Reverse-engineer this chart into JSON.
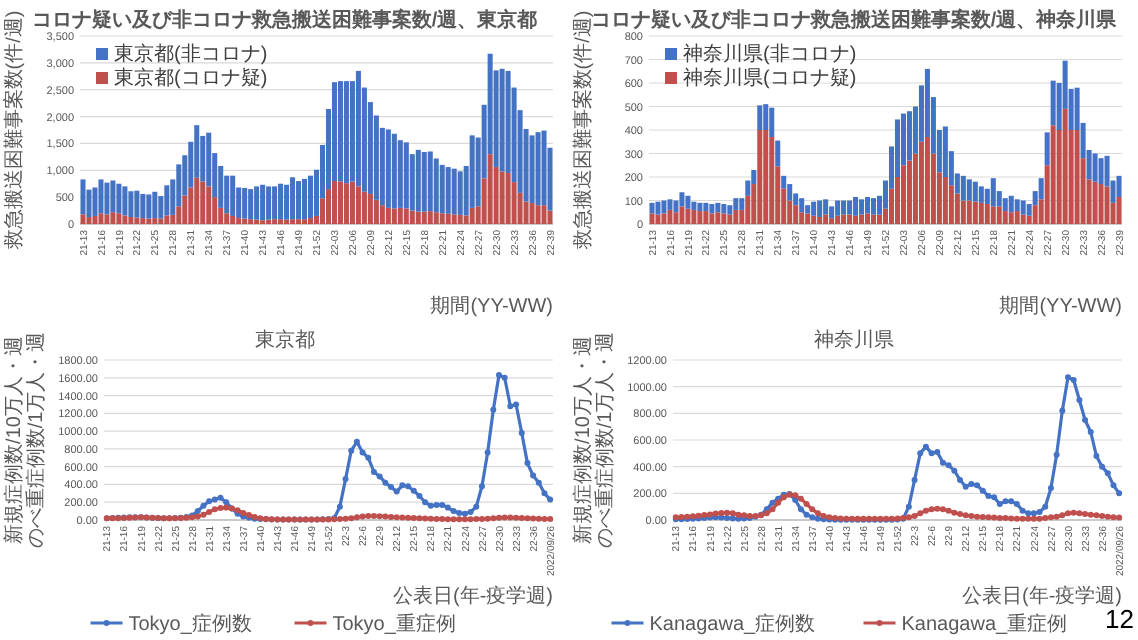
{
  "chart_data": [
    {
      "type": "bar",
      "stacked": true,
      "title": "コロナ疑い及び非コロナ救急搬送困難事案数/週、東京都",
      "xlabel": "期間(YY-WW)",
      "ylabel": "救急搬送困難事案数(件/週)",
      "legend": "top left",
      "grid": "y",
      "categories": [
        "21-13",
        null,
        null,
        "21-16",
        null,
        null,
        "21-19",
        null,
        null,
        "21-22",
        null,
        null,
        "21-25",
        null,
        null,
        "21-28",
        null,
        null,
        "21-31",
        null,
        null,
        "21-34",
        null,
        null,
        "21-37",
        null,
        null,
        "21-40",
        null,
        null,
        "21-43",
        null,
        null,
        "21-46",
        null,
        null,
        "21-49",
        null,
        null,
        "21-52",
        null,
        null,
        "22-03",
        null,
        null,
        "22-06",
        null,
        null,
        "22-09",
        null,
        null,
        "22-12",
        null,
        null,
        "22-15",
        null,
        null,
        "22-18",
        null,
        null,
        "22-21",
        null,
        null,
        "22-24",
        null,
        null,
        "22-27",
        null,
        null,
        "22-30",
        null,
        null,
        "22-33",
        null,
        null,
        "22-36",
        null,
        null,
        "22-39"
      ],
      "ylim": [
        0,
        3500
      ],
      "yticks": [
        0,
        500,
        {
          "value": 1000,
          "label": "1,000"
        },
        {
          "value": 1500,
          "label": "1,500"
        },
        {
          "value": 2000,
          "label": "2,000"
        },
        {
          "value": 2500,
          "label": "2,500"
        },
        {
          "value": 3000,
          "label": "3,000"
        },
        {
          "value": 3500,
          "label": "3,500"
        }
      ],
      "series": [
        {
          "name": "東京都(コロナ疑)",
          "color": "#c0504d",
          "values": [
            180,
            130,
            150,
            200,
            180,
            220,
            200,
            160,
            130,
            120,
            110,
            100,
            110,
            100,
            160,
            170,
            330,
            530,
            680,
            860,
            790,
            700,
            500,
            300,
            200,
            150,
            110,
            100,
            90,
            80,
            70,
            80,
            90,
            90,
            80,
            90,
            90,
            90,
            110,
            150,
            480,
            650,
            800,
            790,
            760,
            790,
            700,
            600,
            560,
            450,
            350,
            300,
            290,
            300,
            290,
            250,
            230,
            230,
            240,
            220,
            200,
            190,
            180,
            170,
            160,
            300,
            330,
            850,
            1300,
            1060,
            980,
            950,
            780,
            580,
            420,
            390,
            350,
            350,
            250
          ]
        },
        {
          "name": "東京都(非コロナ)",
          "color": "#4472c4",
          "values": [
            650,
            510,
            530,
            630,
            590,
            590,
            550,
            540,
            480,
            500,
            450,
            450,
            490,
            420,
            560,
            660,
            780,
            750,
            850,
            980,
            850,
            1000,
            820,
            780,
            700,
            750,
            570,
            570,
            560,
            620,
            660,
            620,
            610,
            660,
            650,
            780,
            710,
            750,
            790,
            860,
            990,
            1490,
            1840,
            1870,
            1900,
            1870,
            2150,
            1940,
            1710,
            1570,
            1440,
            1460,
            1390,
            1260,
            1230,
            1050,
            1150,
            1110,
            1110,
            1000,
            900,
            870,
            850,
            810,
            920,
            1350,
            1280,
            1370,
            1870,
            1800,
            1910,
            1900,
            1760,
            1540,
            1350,
            1260,
            1360,
            1390,
            1170
          ]
        }
      ]
    },
    {
      "type": "bar",
      "stacked": true,
      "title": "コロナ疑い及び非コロナ救急搬送困難事案数/週、神奈川県",
      "xlabel": "期間(YY-WW)",
      "ylabel": "救急搬送困難事案数(件/週)",
      "legend": "top left",
      "grid": "y",
      "categories": [
        "21-13",
        null,
        null,
        "21-16",
        null,
        null,
        "21-19",
        null,
        null,
        "21-22",
        null,
        null,
        "21-25",
        null,
        null,
        "21-28",
        null,
        null,
        "21-31",
        null,
        null,
        "21-34",
        null,
        null,
        "21-37",
        null,
        null,
        "21-40",
        null,
        null,
        "21-43",
        null,
        null,
        "21-46",
        null,
        null,
        "21-49",
        null,
        null,
        "21-52",
        null,
        null,
        "22-03",
        null,
        null,
        "22-06",
        null,
        null,
        "22-09",
        null,
        null,
        "22-12",
        null,
        null,
        "22-15",
        null,
        null,
        "22-18",
        null,
        null,
        "22-21",
        null,
        null,
        "22-24",
        null,
        null,
        "22-27",
        null,
        null,
        "22-30",
        null,
        null,
        "22-33",
        null,
        null,
        "22-36",
        null,
        null,
        "22-39"
      ],
      "ylim": [
        0,
        800
      ],
      "yticks": [
        0,
        100,
        200,
        300,
        400,
        500,
        600,
        700,
        800
      ],
      "series": [
        {
          "name": "神奈川県(コロナ疑)",
          "color": "#c0504d",
          "values": [
            45,
            40,
            45,
            60,
            50,
            75,
            65,
            60,
            55,
            55,
            45,
            50,
            45,
            40,
            60,
            60,
            120,
            170,
            400,
            400,
            370,
            245,
            150,
            100,
            80,
            50,
            45,
            35,
            30,
            40,
            25,
            35,
            40,
            40,
            35,
            40,
            45,
            40,
            40,
            65,
            150,
            200,
            250,
            270,
            300,
            350,
            370,
            300,
            220,
            200,
            165,
            130,
            100,
            100,
            95,
            90,
            85,
            75,
            75,
            55,
            50,
            55,
            40,
            35,
            80,
            105,
            250,
            420,
            400,
            490,
            400,
            400,
            280,
            190,
            180,
            170,
            160,
            90,
            115
          ]
        },
        {
          "name": "神奈川県(非コロナ)",
          "color": "#4472c4",
          "values": [
            45,
            55,
            55,
            45,
            50,
            60,
            55,
            35,
            35,
            35,
            40,
            40,
            40,
            40,
            50,
            50,
            65,
            60,
            105,
            110,
            125,
            110,
            55,
            70,
            50,
            60,
            35,
            60,
            70,
            65,
            50,
            65,
            60,
            60,
            80,
            65,
            70,
            70,
            80,
            120,
            180,
            245,
            220,
            210,
            200,
            240,
            290,
            240,
            180,
            215,
            145,
            85,
            105,
            90,
            85,
            70,
            65,
            120,
            65,
            55,
            70,
            50,
            60,
            50,
            60,
            90,
            140,
            190,
            200,
            205,
            175,
            180,
            150,
            125,
            120,
            110,
            130,
            95,
            90
          ]
        }
      ]
    },
    {
      "type": "line",
      "title": "東京都",
      "xlabel": "公表日(年-疫学週)",
      "ylabel": "新規症例数/10万人・週のべ重症例数/1万人・週",
      "legend": "bottom",
      "grid": "y",
      "marker": "circle",
      "line_style": "solid",
      "categories": [
        "21-13",
        null,
        null,
        "21-16",
        null,
        null,
        "21-19",
        null,
        null,
        "21-22",
        null,
        null,
        "21-25",
        null,
        null,
        "21-28",
        null,
        null,
        "21-31",
        null,
        null,
        "21-34",
        null,
        null,
        "21-37",
        null,
        null,
        "21-40",
        null,
        null,
        "21-43",
        null,
        null,
        "21-46",
        null,
        null,
        "21-49",
        null,
        null,
        "21-52",
        null,
        null,
        "22-3",
        null,
        null,
        "22-6",
        null,
        null,
        "22-9",
        null,
        null,
        "22-12",
        null,
        null,
        "22-15",
        null,
        null,
        "22-18",
        null,
        null,
        "22-21",
        null,
        null,
        "22-24",
        null,
        null,
        "22-27",
        null,
        null,
        "22-30",
        null,
        null,
        "22-33",
        null,
        null,
        "22-36",
        null,
        null,
        "2022/09/26"
      ],
      "ylim": [
        0,
        1800
      ],
      "yticks": [
        {
          "value": 0,
          "label": "0.00"
        },
        {
          "value": 200,
          "label": "200.00"
        },
        {
          "value": 400,
          "label": "400.00"
        },
        {
          "value": 600,
          "label": "600.00"
        },
        {
          "value": 800,
          "label": "800.00"
        },
        {
          "value": 1000,
          "label": "1000.00"
        },
        {
          "value": 1200,
          "label": "1200.00"
        },
        {
          "value": 1400,
          "label": "1400.00"
        },
        {
          "value": 1600,
          "label": "1600.00"
        },
        {
          "value": 1800,
          "label": "1800.00"
        }
      ],
      "series": [
        {
          "name": "Tokyo_症例数",
          "color": "#4472c4",
          "values": [
            20,
            22,
            25,
            28,
            30,
            32,
            30,
            28,
            25,
            22,
            20,
            20,
            22,
            25,
            35,
            50,
            100,
            160,
            210,
            230,
            250,
            200,
            130,
            70,
            40,
            25,
            15,
            10,
            8,
            6,
            5,
            5,
            5,
            5,
            5,
            5,
            5,
            6,
            8,
            10,
            20,
            150,
            460,
            780,
            880,
            760,
            700,
            540,
            490,
            420,
            370,
            320,
            390,
            380,
            330,
            270,
            200,
            160,
            170,
            170,
            140,
            100,
            80,
            70,
            90,
            150,
            380,
            760,
            1240,
            1630,
            1600,
            1280,
            1300,
            980,
            640,
            500,
            420,
            300,
            230
          ]
        },
        {
          "name": "Tokyo_重症例",
          "color": "#c0504d",
          "values": [
            20,
            20,
            20,
            22,
            25,
            28,
            30,
            28,
            25,
            22,
            20,
            20,
            20,
            22,
            25,
            30,
            40,
            60,
            90,
            120,
            135,
            140,
            130,
            110,
            80,
            55,
            35,
            20,
            12,
            8,
            6,
            5,
            5,
            5,
            5,
            5,
            5,
            5,
            5,
            6,
            8,
            10,
            15,
            20,
            30,
            40,
            45,
            45,
            42,
            40,
            35,
            30,
            28,
            25,
            22,
            20,
            18,
            15,
            12,
            10,
            8,
            8,
            8,
            8,
            8,
            10,
            12,
            15,
            20,
            25,
            28,
            28,
            25,
            22,
            20,
            18,
            15,
            12,
            10
          ]
        }
      ]
    },
    {
      "type": "line",
      "title": "神奈川県",
      "xlabel": "公表日(年-疫学週)",
      "ylabel": "新規症例数/10万人・週のべ重症例数/1万人・週",
      "legend": "bottom",
      "grid": "y",
      "marker": "circle",
      "line_style": "solid",
      "annotations": [
        "12"
      ],
      "categories": [
        "21-13",
        null,
        null,
        "21-16",
        null,
        null,
        "21-19",
        null,
        null,
        "21-22",
        null,
        null,
        "21-25",
        null,
        null,
        "21-28",
        null,
        null,
        "21-31",
        null,
        null,
        "21-34",
        null,
        null,
        "21-37",
        null,
        null,
        "21-40",
        null,
        null,
        "21-43",
        null,
        null,
        "21-46",
        null,
        null,
        "21-49",
        null,
        null,
        "21-52",
        null,
        null,
        "22-3",
        null,
        null,
        "22-6",
        null,
        null,
        "22-9",
        null,
        null,
        "22-12",
        null,
        null,
        "22-15",
        null,
        null,
        "22-18",
        null,
        null,
        "22-21",
        null,
        null,
        "22-24",
        null,
        null,
        "22-27",
        null,
        null,
        "22-30",
        null,
        null,
        "22-33",
        null,
        null,
        "22-36",
        null,
        null,
        "2022/09/26"
      ],
      "ylim": [
        0,
        1200
      ],
      "yticks": [
        {
          "value": 0,
          "label": "0.00"
        },
        {
          "value": 200,
          "label": "200.00"
        },
        {
          "value": 400,
          "label": "400.00"
        },
        {
          "value": 600,
          "label": "600.00"
        },
        {
          "value": 800,
          "label": "800.00"
        },
        {
          "value": 1000,
          "label": "1000.00"
        },
        {
          "value": 1200,
          "label": "1200.00"
        }
      ],
      "series": [
        {
          "name": "Kanagawa_症例数",
          "color": "#4472c4",
          "values": [
            5,
            5,
            8,
            10,
            12,
            15,
            18,
            20,
            18,
            15,
            12,
            10,
            12,
            15,
            25,
            40,
            80,
            130,
            160,
            190,
            195,
            150,
            80,
            40,
            20,
            10,
            5,
            3,
            2,
            2,
            2,
            2,
            2,
            2,
            2,
            2,
            2,
            2,
            2,
            3,
            10,
            100,
            300,
            500,
            550,
            500,
            510,
            430,
            410,
            370,
            300,
            250,
            270,
            260,
            220,
            180,
            170,
            120,
            140,
            140,
            120,
            70,
            50,
            50,
            60,
            100,
            240,
            490,
            820,
            1070,
            1050,
            900,
            750,
            660,
            480,
            400,
            350,
            260,
            200
          ]
        },
        {
          "name": "Kanagawa_重症例",
          "color": "#c0504d",
          "values": [
            20,
            22,
            25,
            28,
            32,
            38,
            42,
            48,
            52,
            55,
            50,
            40,
            35,
            30,
            30,
            35,
            50,
            80,
            130,
            170,
            190,
            185,
            160,
            120,
            80,
            50,
            30,
            20,
            15,
            12,
            10,
            10,
            10,
            10,
            10,
            10,
            10,
            10,
            10,
            12,
            15,
            20,
            30,
            50,
            70,
            80,
            85,
            80,
            70,
            55,
            45,
            35,
            30,
            25,
            22,
            20,
            18,
            15,
            15,
            12,
            10,
            10,
            10,
            10,
            10,
            15,
            20,
            25,
            35,
            50,
            55,
            50,
            45,
            40,
            35,
            30,
            25,
            20,
            18
          ]
        }
      ]
    }
  ]
}
